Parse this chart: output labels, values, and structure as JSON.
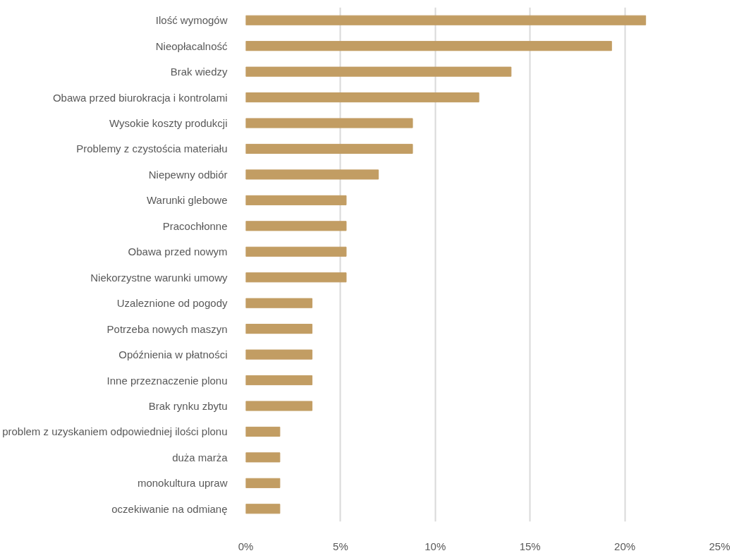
{
  "chart_data": {
    "type": "bar",
    "orientation": "horizontal",
    "categories": [
      "Ilość wymogów",
      "Nieopłacalność",
      "Brak wiedzy",
      "Obawa przed biurokracja i kontrolami",
      "Wysokie koszty produkcji",
      "Problemy z czystościa materiału",
      "Niepewny odbiór",
      "Warunki glebowe",
      "Pracochłonne",
      "Obawa przed nowym",
      "Niekorzystne warunki umowy",
      "Uzaleznione od pogody",
      "Potrzeba nowych maszyn",
      "Opóźnienia w płatności",
      "Inne przeznaczenie plonu",
      "Brak rynku zbytu",
      "problem z uzyskaniem odpowiedniej ilości plonu",
      "duża marża",
      "monokultura upraw",
      "oczekiwanie na odmianę"
    ],
    "values": [
      21.1,
      19.3,
      14.0,
      12.3,
      8.8,
      8.8,
      7.0,
      5.3,
      5.3,
      5.3,
      5.3,
      3.5,
      3.5,
      3.5,
      3.5,
      3.5,
      1.8,
      1.8,
      1.8,
      1.8
    ],
    "color": "#c29d63",
    "xlim": [
      0,
      25
    ],
    "xticks": [
      {
        "value": 0,
        "label": "0%"
      },
      {
        "value": 5,
        "label": "5%"
      },
      {
        "value": 10,
        "label": "10%"
      },
      {
        "value": 15,
        "label": "15%"
      },
      {
        "value": 20,
        "label": "20%"
      },
      {
        "value": 25,
        "label": "25%"
      }
    ],
    "grid": "x"
  }
}
